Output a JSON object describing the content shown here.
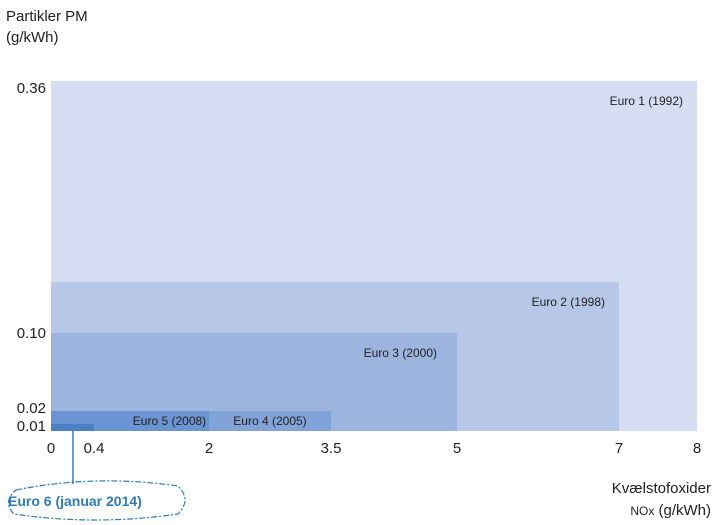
{
  "chart_data": {
    "type": "area",
    "title": "",
    "ylabel_line1": "Partikler PM",
    "ylabel_line2": "(g/kWh)",
    "xlabel_line1": "Kvælstofoxider",
    "xlabel_nox": "NOx",
    "xlabel_unit": " (g/kWh)",
    "x_ticks": [
      {
        "value": 0,
        "label": "0"
      },
      {
        "value": 0.4,
        "label": "0.4"
      },
      {
        "value": 2,
        "label": "2"
      },
      {
        "value": 3.5,
        "label": "3.5"
      },
      {
        "value": 5,
        "label": "5"
      },
      {
        "value": 7,
        "label": "7"
      },
      {
        "value": 8,
        "label": "8"
      }
    ],
    "y_ticks": [
      {
        "value": 0.01,
        "label": "0.01"
      },
      {
        "value": 0.02,
        "label": "0.02"
      },
      {
        "value": 0.1,
        "label": "0.10"
      },
      {
        "value": 0.36,
        "label": "0.36"
      }
    ],
    "series": [
      {
        "name": "Euro 1 (1992)",
        "nox": 8,
        "pm": 0.36,
        "color": "#d5ddf2"
      },
      {
        "name": "Euro 2 (1998)",
        "nox": 7,
        "pm": 0.15,
        "color": "#b6c7e8"
      },
      {
        "name": "Euro 3 (2000)",
        "nox": 5,
        "pm": 0.1,
        "color": "#9db4df"
      },
      {
        "name": "Euro 4 (2005)",
        "nox": 3.5,
        "pm": 0.02,
        "color": "#82a3d8"
      },
      {
        "name": "Euro 5 (2008)",
        "nox": 2,
        "pm": 0.02,
        "color": "#6b94d2"
      },
      {
        "name": "Euro 6 (januar 2014)",
        "nox": 0.4,
        "pm": 0.01,
        "color": "#4a7fc4"
      }
    ],
    "annotation_color": "#2e7db8"
  }
}
